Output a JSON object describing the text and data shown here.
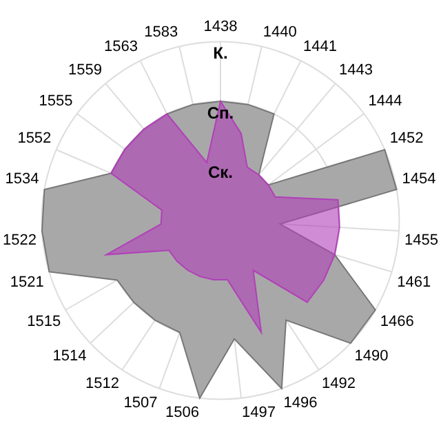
{
  "chart_data": {
    "type": "radar",
    "categories": [
      "1438",
      "1440",
      "1441",
      "1443",
      "1444",
      "1452",
      "1454",
      "1455",
      "1461",
      "1466",
      "1490",
      "1492",
      "1496",
      "1497",
      "1506",
      "1507",
      "1512",
      "1514",
      "1515",
      "1521",
      "1522",
      "1534",
      "1552",
      "1555",
      "1559",
      "1563",
      "1583"
    ],
    "series": [
      {
        "color": "#a8a8a8",
        "values": [
          2,
          2,
          2,
          1,
          1,
          3,
          3,
          1,
          2,
          3,
          3,
          2,
          3,
          2,
          3,
          2,
          2,
          2,
          2,
          3,
          3,
          3,
          2,
          2,
          2,
          2,
          2
        ]
      },
      {
        "color": "#b040b8",
        "values": [
          2,
          1.5,
          1,
          1,
          1,
          1,
          2,
          2,
          2,
          2,
          2,
          1,
          2,
          1,
          1,
          1,
          1,
          1,
          1,
          2,
          1,
          1,
          2,
          2,
          2,
          2,
          1
        ]
      }
    ],
    "ylim": [
      0,
      3
    ],
    "yticks": [
      {
        "value": 1,
        "label": "Ск."
      },
      {
        "value": 2,
        "label": "Сп."
      },
      {
        "value": 3,
        "label": "К."
      }
    ],
    "grid": true,
    "legend": false
  }
}
